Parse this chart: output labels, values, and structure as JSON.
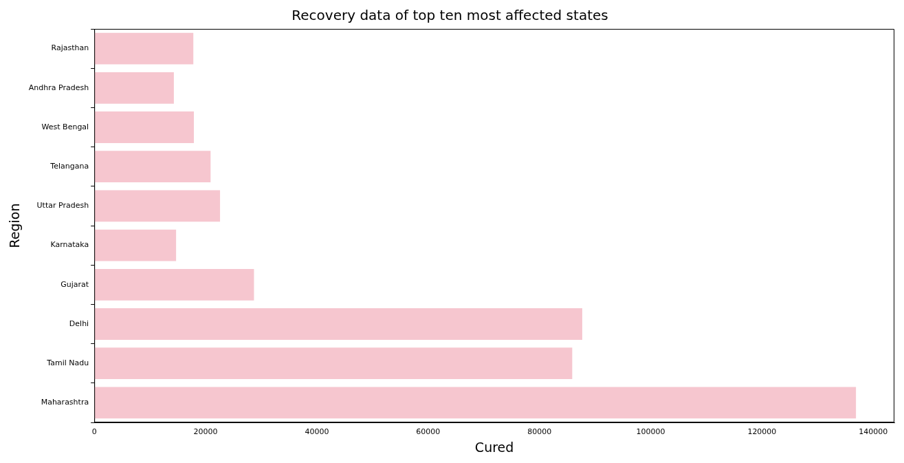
{
  "chart_data": {
    "type": "bar",
    "orientation": "horizontal",
    "title": "Recovery data of top ten most affected states",
    "xlabel": "Cured",
    "ylabel": "Region",
    "categories": [
      "Rajasthan",
      "Andhra Pradesh",
      "West Bengal",
      "Telangana",
      "Uttar Pradesh",
      "Karnataka",
      "Gujarat",
      "Delhi",
      "Tamil Nadu",
      "Maharashtra"
    ],
    "values": [
      17800,
      14300,
      17900,
      20900,
      22600,
      14700,
      28700,
      87700,
      85900,
      136900
    ],
    "color": "#f6c6cf",
    "xlim": [
      0,
      143800
    ],
    "xticks": [
      0,
      20000,
      40000,
      60000,
      80000,
      100000,
      120000,
      140000
    ],
    "grid": false,
    "legend": false
  }
}
